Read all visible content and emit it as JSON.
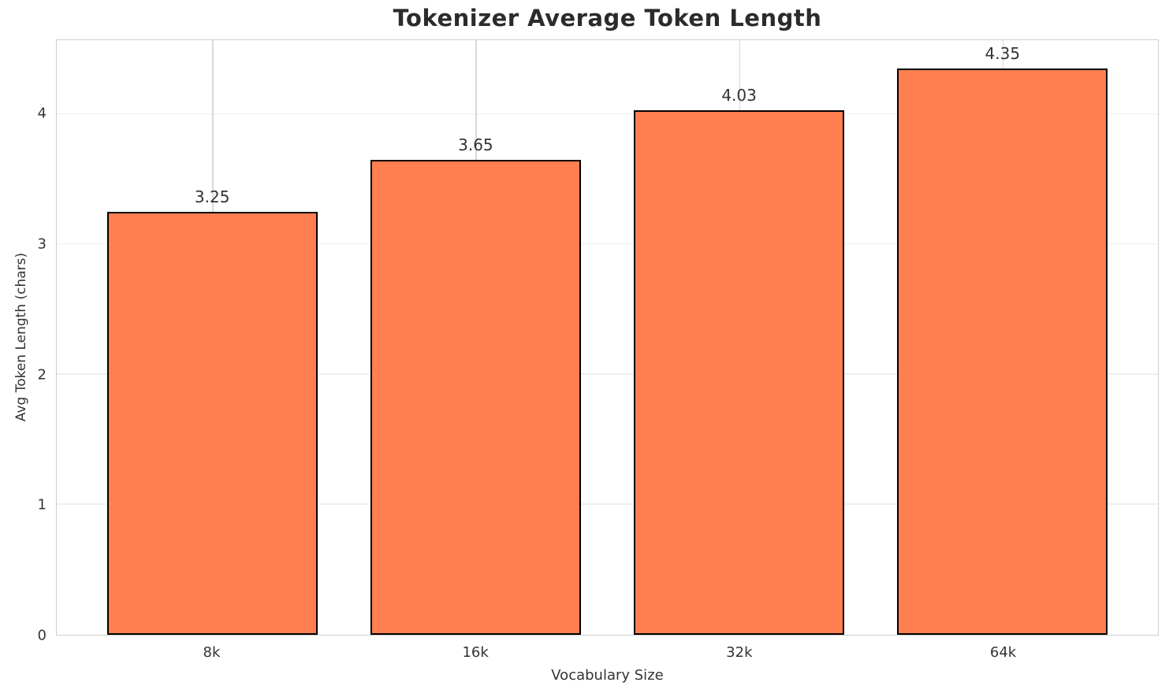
{
  "chart_data": {
    "type": "bar",
    "title": "Tokenizer Average Token Length",
    "xlabel": "Vocabulary Size",
    "ylabel": "Avg Token Length (chars)",
    "categories": [
      "8k",
      "16k",
      "32k",
      "64k"
    ],
    "values": [
      3.25,
      3.65,
      4.03,
      4.35
    ],
    "value_labels": [
      "3.25",
      "3.65",
      "4.03",
      "4.35"
    ],
    "yticks": [
      0,
      1,
      2,
      3,
      4
    ],
    "ylim": [
      0,
      4.57
    ],
    "xlim": [
      -0.59,
      3.59
    ],
    "bar_width": 0.8,
    "grid": true,
    "legend": "none",
    "colors": {
      "bar_fill": "#FF7F50",
      "bar_edge": "#000000",
      "h_gridline": "#efefef",
      "v_gridline": "#d9d9d9",
      "spine": "#cfcfcf",
      "title_text": "#2b2b2b",
      "tick_text": "#333333"
    }
  }
}
